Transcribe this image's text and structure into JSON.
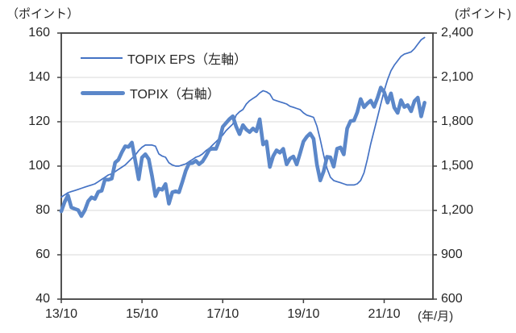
{
  "colors": {
    "eps_line": "#4472C4",
    "topix_line": "#5B87C9",
    "grid": "#D9D9D9",
    "axis": "#404040",
    "text": "#262626"
  },
  "chart_data": {
    "type": "line",
    "title": "",
    "x_axis": {
      "unit_label": "(年/月)",
      "tick_labels": [
        "13/10",
        "15/10",
        "17/10",
        "19/10",
        "21/10"
      ],
      "tick_months": [
        0,
        24,
        48,
        72,
        96
      ],
      "months_total": 110.5,
      "n_points": 109,
      "start": "13/10",
      "end": "22/10",
      "interval": "monthly"
    },
    "left_axis": {
      "unit_label": "（ポイント）",
      "ticks": [
        "160",
        "140",
        "120",
        "100",
        "80",
        "60",
        "40"
      ],
      "range": [
        40,
        160
      ]
    },
    "right_axis": {
      "unit_label": "(ポイント)",
      "ticks": [
        "2,400",
        "2,100",
        "1,800",
        "1,500",
        "1,200",
        "900",
        "600"
      ],
      "range": [
        600,
        2400
      ]
    },
    "grid": "horizontal",
    "legend_position": "inside-top-left",
    "series": [
      {
        "name": "TOPIX EPS（左軸）",
        "axis": "left",
        "style": "thin",
        "values": [
          86,
          87,
          88,
          88.5,
          89,
          89.5,
          90,
          90.5,
          91,
          91.5,
          92,
          93,
          94,
          95,
          96,
          96.5,
          97.5,
          98.5,
          99.5,
          100.5,
          102,
          103.5,
          105,
          107,
          108.5,
          109.5,
          109.5,
          109.5,
          109,
          105.5,
          104.5,
          104,
          101.5,
          100.5,
          100,
          100,
          100.5,
          101,
          102,
          103,
          104,
          104.5,
          105.5,
          107,
          108,
          109.5,
          111,
          112.5,
          114,
          116,
          117.5,
          119,
          123,
          124.5,
          125.5,
          128,
          129.5,
          130.5,
          131.5,
          133,
          134,
          133.5,
          132.5,
          130,
          129.5,
          129,
          128.5,
          128,
          127,
          126.5,
          126,
          125.5,
          124,
          123,
          122.5,
          122,
          118,
          112,
          105,
          99,
          95,
          93.5,
          93,
          92.5,
          92,
          91.5,
          91.5,
          91.5,
          92,
          93.5,
          97,
          103,
          110,
          116,
          122,
          128,
          134,
          139,
          143,
          145.5,
          147.5,
          149.5,
          150.5,
          151,
          151.5,
          153,
          155,
          157,
          158
        ]
      },
      {
        "name": "TOPIX（右軸）",
        "axis": "right",
        "style": "thick",
        "values": [
          1194,
          1258,
          1302,
          1220,
          1211,
          1203,
          1162,
          1201,
          1263,
          1289,
          1278,
          1326,
          1333,
          1410,
          1408,
          1415,
          1524,
          1543,
          1593,
          1634,
          1630,
          1659,
          1537,
          1411,
          1558,
          1580,
          1547,
          1432,
          1297,
          1347,
          1340,
          1379,
          1246,
          1323,
          1330,
          1323,
          1393,
          1469,
          1518,
          1521,
          1536,
          1513,
          1531,
          1568,
          1612,
          1618,
          1617,
          1675,
          1766,
          1792,
          1818,
          1837,
          1768,
          1716,
          1777,
          1747,
          1730,
          1754,
          1735,
          1817,
          1646,
          1667,
          1494,
          1567,
          1607,
          1591,
          1617,
          1512,
          1551,
          1565,
          1511,
          1587,
          1667,
          1699,
          1721,
          1685,
          1510,
          1403,
          1464,
          1563,
          1559,
          1496,
          1618,
          1626,
          1579,
          1755,
          1805,
          1808,
          1864,
          1954,
          1898,
          1923,
          1943,
          1901,
          1961,
          2031,
          2001,
          1929,
          1992,
          1896,
          1860,
          1946,
          1900,
          1913,
          1871,
          1940,
          1963,
          1836,
          1929
        ]
      }
    ]
  }
}
